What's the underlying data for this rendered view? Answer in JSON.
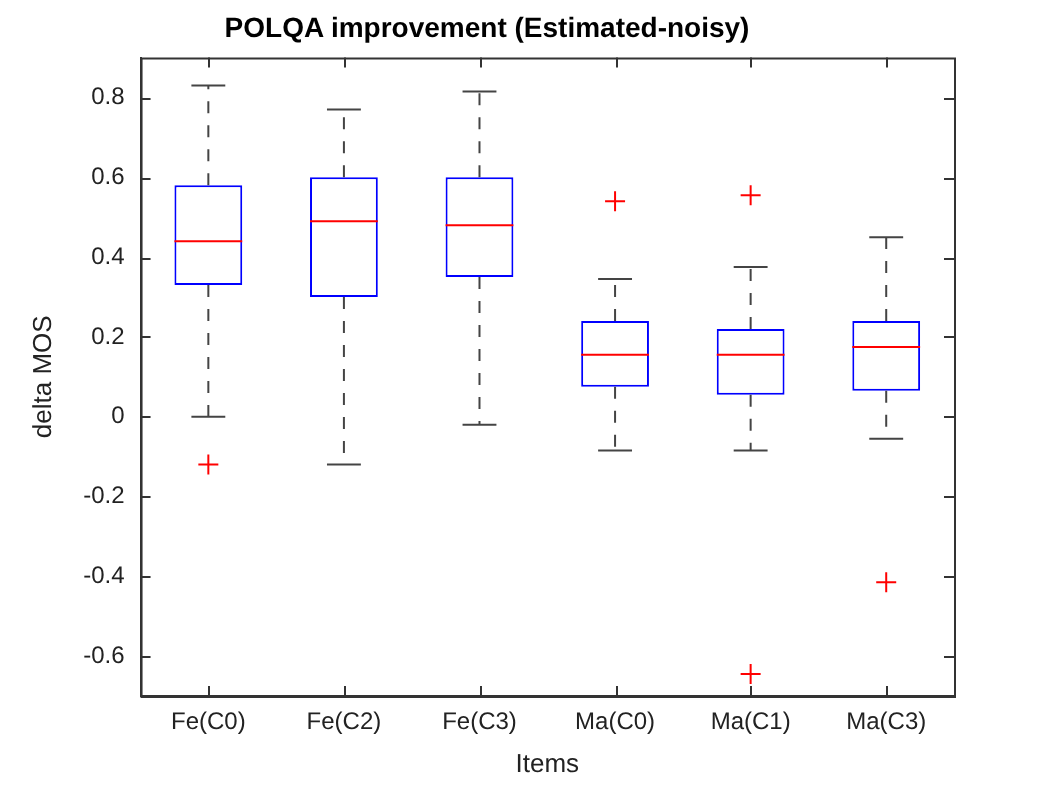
{
  "chart_data": {
    "type": "box",
    "title": "POLQA improvement (Estimated-noisy)",
    "xlabel": "Items",
    "ylabel": "delta MOS",
    "categories": [
      "Fe(C0)",
      "Fe(C2)",
      "Fe(C3)",
      "Ma(C0)",
      "Ma(C1)",
      "Ma(C3)"
    ],
    "color": "#0000ff",
    "marker": "cross",
    "boxes": [
      {
        "low": 0,
        "q1": 0.33,
        "median": 0.44,
        "q3": 0.58,
        "high": 0.83,
        "outliers": [
          -0.12
        ]
      },
      {
        "low": -0.12,
        "q1": 0.3,
        "median": 0.49,
        "q3": 0.6,
        "high": 0.77
      },
      {
        "low": -0.02,
        "q1": 0.35,
        "median": 0.48,
        "q3": 0.6,
        "high": 0.815
      },
      {
        "low": -0.085,
        "q1": 0.075,
        "median": 0.155,
        "q3": 0.24,
        "high": 0.345,
        "outliers": [
          0.54
        ]
      },
      {
        "low": -0.085,
        "q1": 0.055,
        "median": 0.155,
        "q3": 0.22,
        "high": 0.375,
        "outliers": [
          0.555,
          -0.645
        ]
      },
      {
        "low": -0.055,
        "q1": 0.065,
        "median": 0.175,
        "q3": 0.24,
        "high": 0.45,
        "outliers": [
          -0.415
        ]
      }
    ],
    "ylim": [
      -0.7,
      0.9
    ],
    "yticks": [
      -0.6,
      -0.4,
      -0.2,
      0,
      0.2,
      0.4,
      0.6,
      0.8
    ],
    "legend": false
  }
}
